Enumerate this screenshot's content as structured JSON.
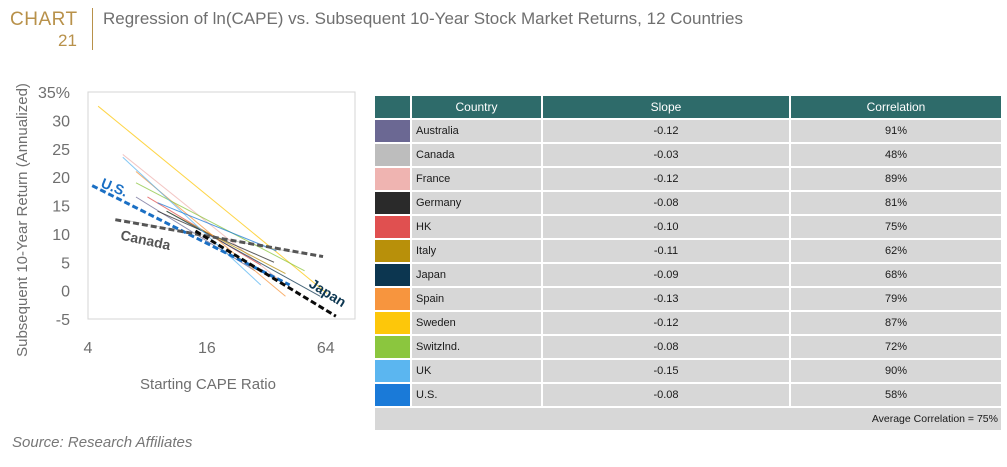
{
  "header": {
    "chart_label": "CHART",
    "chart_number": "21",
    "title": "Regression of ln(CAPE) vs. Subsequent 10-Year Stock Market Returns, 12 Countries"
  },
  "source": "Source: Research Affiliates",
  "table": {
    "headers": [
      "Country",
      "Slope",
      "Correlation"
    ],
    "rows": [
      {
        "country": "Australia",
        "slope": "-0.12",
        "correlation": "91%",
        "color": "#6b6893"
      },
      {
        "country": "Canada",
        "slope": "-0.03",
        "correlation": "48%",
        "color": "#bdbdbd"
      },
      {
        "country": "France",
        "slope": "-0.12",
        "correlation": "89%",
        "color": "#efb4b1"
      },
      {
        "country": "Germany",
        "slope": "-0.08",
        "correlation": "81%",
        "color": "#2a2a2a"
      },
      {
        "country": "HK",
        "slope": "-0.10",
        "correlation": "75%",
        "color": "#e05050"
      },
      {
        "country": "Italy",
        "slope": "-0.11",
        "correlation": "62%",
        "color": "#b8900a"
      },
      {
        "country": "Japan",
        "slope": "-0.09",
        "correlation": "68%",
        "color": "#0c3650"
      },
      {
        "country": "Spain",
        "slope": "-0.13",
        "correlation": "79%",
        "color": "#f7953e"
      },
      {
        "country": "Sweden",
        "slope": "-0.12",
        "correlation": "87%",
        "color": "#fdc70a"
      },
      {
        "country": "Switzlnd.",
        "slope": "-0.08",
        "correlation": "72%",
        "color": "#8bc63e"
      },
      {
        "country": "UK",
        "slope": "-0.15",
        "correlation": "90%",
        "color": "#5bb6f0"
      },
      {
        "country": "U.S.",
        "slope": "-0.08",
        "correlation": "58%",
        "color": "#1a7ad8"
      }
    ],
    "footer": "Average Correlation = 75%"
  },
  "chart_data": {
    "type": "line",
    "xlabel": "Starting CAPE Ratio",
    "ylabel": "Subsequent 10-Year Return (Annualized)",
    "x_scale": "log2",
    "xlim": [
      4,
      90
    ],
    "ylim": [
      -5,
      35
    ],
    "x_ticks": [
      4,
      16,
      64
    ],
    "x_tick_labels": [
      "4",
      "16",
      "64"
    ],
    "y_ticks": [
      -5,
      0,
      5,
      10,
      15,
      20,
      25,
      30,
      35
    ],
    "y_tick_labels": [
      "-5",
      "0",
      "5",
      "10",
      "15",
      "20",
      "25",
      "30",
      "35%"
    ],
    "grid": false,
    "series": [
      {
        "name": "Australia",
        "color": "#6b6893",
        "x": [
          7,
          28
        ],
        "y": [
          16.5,
          3.5
        ]
      },
      {
        "name": "Canada",
        "color": "#bdbdbd",
        "x": [
          6,
          48
        ],
        "y": [
          12.5,
          6.5
        ]
      },
      {
        "name": "France",
        "color": "#efb4b1",
        "x": [
          6,
          40
        ],
        "y": [
          24,
          1
        ]
      },
      {
        "name": "Germany",
        "color": "#2a2a2a",
        "x": [
          9,
          35
        ],
        "y": [
          14,
          5
        ]
      },
      {
        "name": "HK",
        "color": "#e05050",
        "x": [
          8,
          30
        ],
        "y": [
          16.5,
          4.5
        ]
      },
      {
        "name": "Italy",
        "color": "#b8900a",
        "x": [
          10,
          40
        ],
        "y": [
          14,
          3
        ]
      },
      {
        "name": "Japan",
        "color": "#0c3650",
        "x": [
          10,
          60
        ],
        "y": [
          14,
          -1
        ]
      },
      {
        "name": "Spain",
        "color": "#f7953e",
        "x": [
          7,
          40
        ],
        "y": [
          21,
          -1
        ]
      },
      {
        "name": "Sweden",
        "color": "#fdc70a",
        "x": [
          4.5,
          65
        ],
        "y": [
          32.5,
          -0.5
        ]
      },
      {
        "name": "Switzlnd.",
        "color": "#8bc63e",
        "x": [
          7,
          50
        ],
        "y": [
          19,
          3.5
        ]
      },
      {
        "name": "UK",
        "color": "#5bb6f0",
        "x": [
          6,
          30
        ],
        "y": [
          23.5,
          1
        ]
      },
      {
        "name": "U.S.",
        "color": "#1a7ad8",
        "x": [
          9,
          36
        ],
        "y": [
          15.5,
          7
        ]
      }
    ],
    "highlight_lines": [
      {
        "name": "U.S.",
        "color": "#1a6fc4",
        "x": [
          4.2,
          42
        ],
        "y": [
          18.5,
          1
        ]
      },
      {
        "name": "Canada",
        "color": "#555555",
        "x": [
          5.5,
          62
        ],
        "y": [
          12.5,
          6
        ]
      },
      {
        "name": "Japan",
        "color": "#0a0a0a",
        "x": [
          14,
          72
        ],
        "y": [
          10.5,
          -4.5
        ]
      }
    ],
    "annotations": [
      {
        "text": "U.S.",
        "x": 4.6,
        "y": 18.3,
        "color": "#1a6fc4",
        "rotate": 22
      },
      {
        "text": "Canada",
        "x": 5.8,
        "y": 9.0,
        "color": "#555555",
        "rotate": 12
      },
      {
        "text": "Japan",
        "x": 52,
        "y": 0.8,
        "color": "#0c3650",
        "rotate": 32
      }
    ]
  }
}
